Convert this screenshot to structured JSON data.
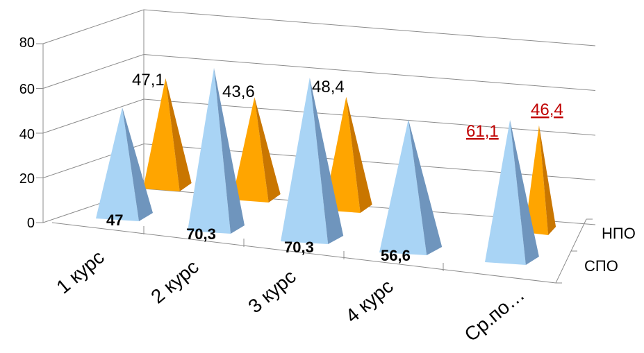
{
  "chart_data": {
    "type": "bar",
    "bar_shape": "3d-pyramid",
    "categories": [
      "1 курс",
      "2 курс",
      "3 курс",
      "4 курс",
      "Ср.по…"
    ],
    "series": [
      {
        "name": "СПО",
        "values": [
          47,
          70.3,
          70.3,
          56.6,
          61.1
        ],
        "labels": [
          "47",
          "70,3",
          "70,3",
          "56,6",
          "61,1"
        ],
        "color": "#a9d4f5"
      },
      {
        "name": "НПО",
        "values": [
          47.1,
          43.6,
          48.4,
          null,
          46.4
        ],
        "labels": [
          "47,1",
          "43,6",
          "48,4",
          "",
          "46,4"
        ],
        "color": "#ffa500"
      }
    ],
    "yticks": [
      "0",
      "20",
      "40",
      "60",
      "80"
    ],
    "ylim": [
      0,
      80
    ],
    "grid": true,
    "legend": "none"
  }
}
